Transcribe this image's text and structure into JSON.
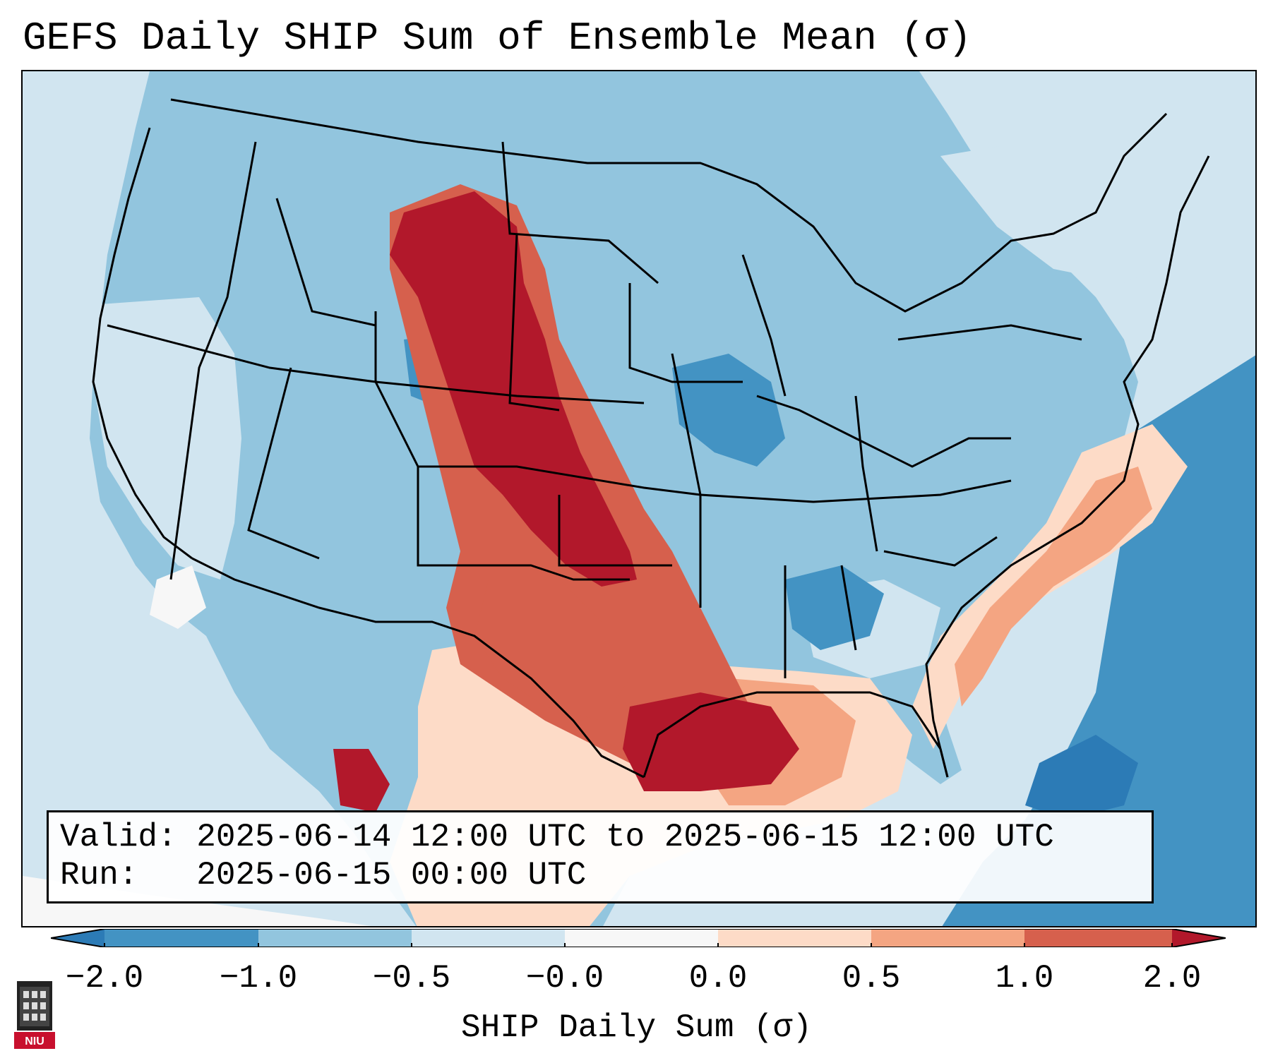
{
  "title": "GEFS Daily SHIP Sum of Ensemble Mean (σ)",
  "info": {
    "valid_label": "Valid:",
    "valid_value": "2025-06-14 12:00 UTC to 2025-06-15 12:00 UTC",
    "run_label": "Run:",
    "run_value": "2025-06-15 00:00 UTC"
  },
  "colorbar": {
    "label": "SHIP Daily Sum (σ)",
    "ticks": [
      "−2.0",
      "−1.0",
      "−0.5",
      "−0.0",
      "0.0",
      "0.5",
      "1.0",
      "2.0"
    ],
    "colors": [
      "#2c7bb6",
      "#4393c3",
      "#92c5de",
      "#d1e5f0",
      "#f7f7f7",
      "#fddbc7",
      "#f4a582",
      "#d6604d",
      "#b2182b"
    ]
  },
  "map": {
    "region": "Contiguous United States",
    "ocean_color": "#d1e5f0",
    "palette": {
      "strong_negative": "#2c7bb6",
      "negative": "#92c5de",
      "weak": "#d1e5f0",
      "near_zero": "#f7f7f7",
      "weak_positive": "#fddbc7",
      "positive": "#f4a582",
      "moderate_positive": "#d6604d",
      "strong_positive": "#b2182b"
    }
  },
  "logo": {
    "text": "NIU"
  }
}
